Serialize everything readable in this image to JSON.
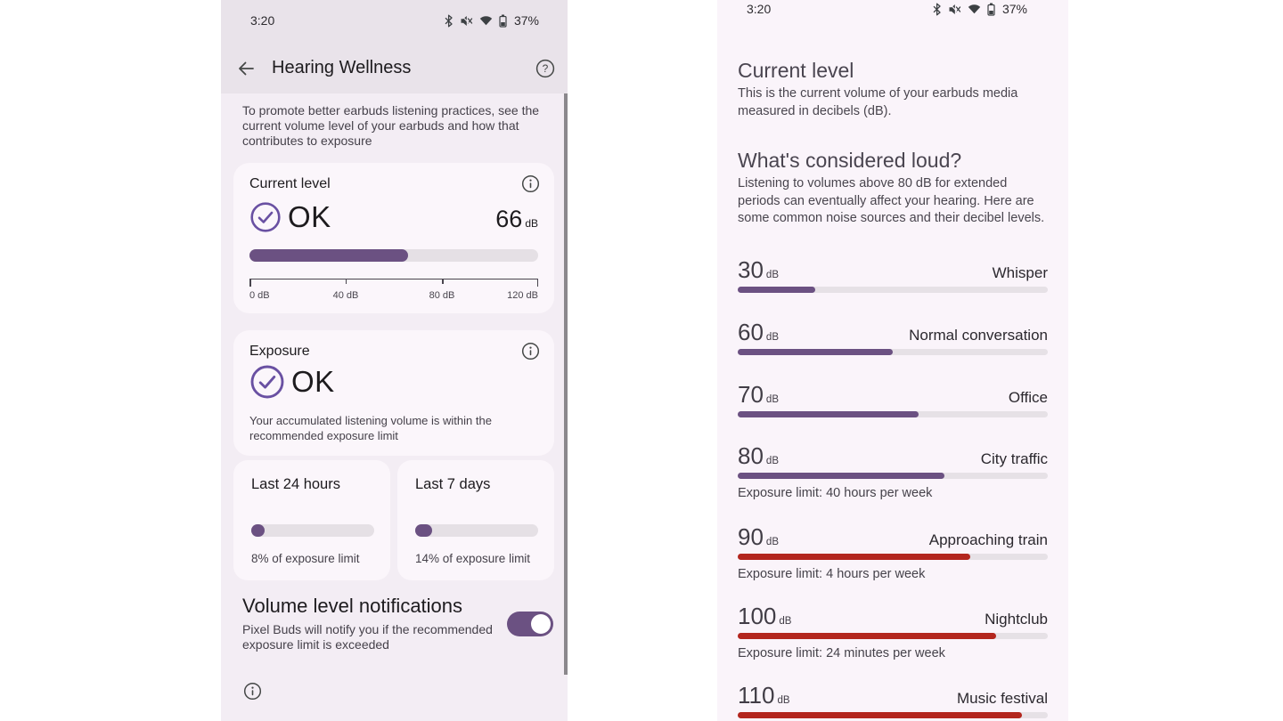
{
  "colors": {
    "accent": "#6b5182",
    "accent_icon": "#6950a2",
    "danger": "#b3261e",
    "track": "#e5e0e5"
  },
  "left_screen": {
    "status_bar": {
      "time": "3:20",
      "battery": "37%"
    },
    "app_bar": {
      "title": "Hearing Wellness"
    },
    "intro": "To promote better earbuds listening practices, see the current volume level of your earbuds and how that contributes to exposure",
    "current_level_card": {
      "title": "Current level",
      "status": "OK",
      "value": 66,
      "unit": "dB",
      "max": 120,
      "axis_ticks": [
        "0 dB",
        "40 dB",
        "80 dB",
        "120 dB"
      ]
    },
    "exposure_card": {
      "title": "Exposure",
      "status": "OK",
      "description": "Your accumulated listening volume is within the recommended exposure limit"
    },
    "last24_card": {
      "title": "Last 24 hours",
      "percent": 8,
      "label": "8% of exposure limit"
    },
    "last7_card": {
      "title": "Last 7 days",
      "percent": 14,
      "label": "14% of exposure limit"
    },
    "notifications": {
      "title": "Volume level notifications",
      "description": "Pixel Buds will notify you if the recommended exposure limit is exceeded",
      "enabled": true
    }
  },
  "right_screen": {
    "status_bar": {
      "time": "3:20",
      "battery": "37%"
    },
    "scale_max": 120,
    "sections": [
      {
        "title": "Current level",
        "body": "This is the current volume of your earbuds media measured in decibels (dB)."
      },
      {
        "title": "What's considered loud?",
        "body": "Listening to volumes above 80 dB for extended periods can eventually affect your hearing. Here are some common noise sources and their decibel levels."
      }
    ],
    "noise_levels": [
      {
        "db": 30,
        "unit": "dB",
        "label": "Whisper"
      },
      {
        "db": 60,
        "unit": "dB",
        "label": "Normal conversation"
      },
      {
        "db": 70,
        "unit": "dB",
        "label": "Office"
      },
      {
        "db": 80,
        "unit": "dB",
        "label": "City traffic",
        "limit": "Exposure limit: 40 hours per week"
      },
      {
        "db": 90,
        "unit": "dB",
        "label": "Approaching train",
        "limit": "Exposure limit: 4 hours per week",
        "loud": true
      },
      {
        "db": 100,
        "unit": "dB",
        "label": "Nightclub",
        "limit": "Exposure limit: 24 minutes per week",
        "loud": true
      },
      {
        "db": 110,
        "unit": "dB",
        "label": "Music festival",
        "loud": true
      }
    ]
  }
}
